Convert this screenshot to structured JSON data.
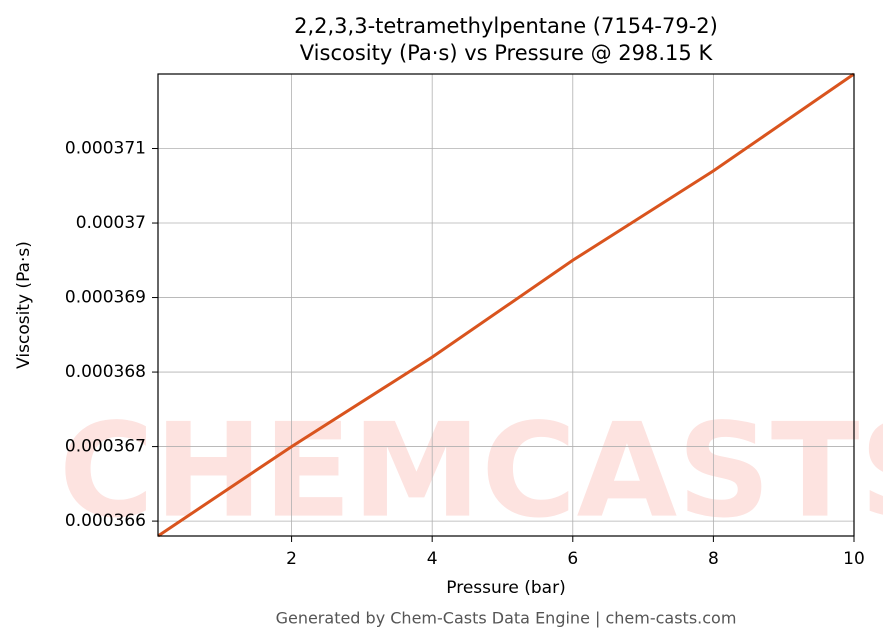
{
  "chart_data": {
    "type": "line",
    "title": "2,2,3,3-tetramethylpentane (7154-79-2)",
    "subtitle": "Viscosity (Pa·s) vs Pressure @ 298.15 K",
    "x_label": "Pressure (bar)",
    "y_label": "Viscosity (Pa·s)",
    "footer": "Generated by Chem-Casts Data Engine | chem-casts.com",
    "watermark": "CHEMCASTS",
    "x": [
      0.1,
      2,
      4,
      6,
      8,
      10
    ],
    "series": [
      {
        "color": "#d9541e",
        "values": [
          0.0003658,
          0.000367,
          0.0003682,
          0.0003695,
          0.0003707,
          0.000372
        ]
      }
    ],
    "xlim": [
      0.1,
      10
    ],
    "ylim": [
      0.0003658,
      0.000372
    ],
    "xticks": [
      2,
      4,
      6,
      8,
      10
    ],
    "yticks": [
      0.000366,
      0.000367,
      0.000368,
      0.000369,
      0.00037,
      0.000371
    ],
    "grid": true
  }
}
